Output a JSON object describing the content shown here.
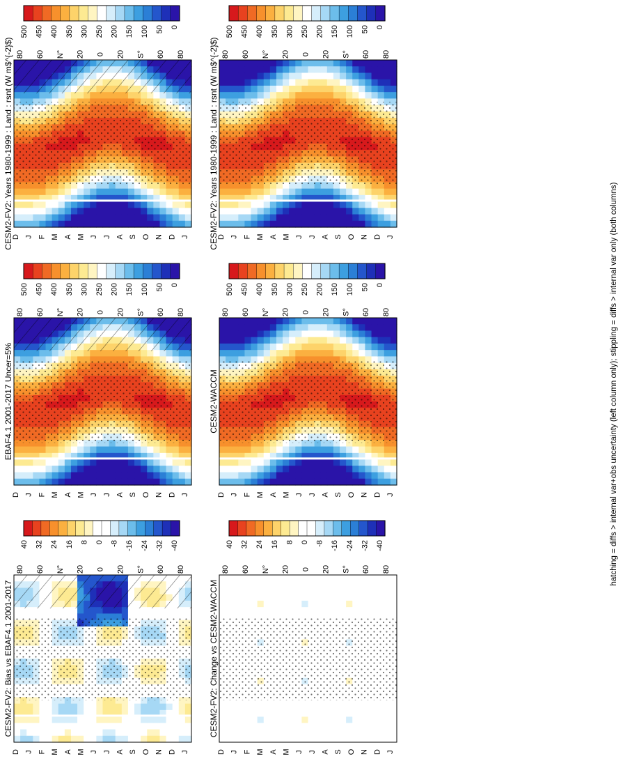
{
  "figure": {
    "footnote": "hatching = diffs > internal var+obs uncertainty (left column only); stippling = diffs > internal var only (both columns)"
  },
  "colors": {
    "abs_scale": [
      "#d7191c",
      "#e8421f",
      "#f06a24",
      "#f7902c",
      "#fbb040",
      "#fdd36a",
      "#fdea92",
      "#fff5c2",
      "#ffffff",
      "#d6eefb",
      "#a6d8f5",
      "#6cbdeb",
      "#3d9fe0",
      "#2b7fd6",
      "#2456cc",
      "#1e30b8",
      "#2a14a8"
    ],
    "diff_scale": [
      "#d7191c",
      "#e8421f",
      "#f06a24",
      "#f7902c",
      "#fbb040",
      "#fdd36a",
      "#fdea92",
      "#fff5c2",
      "#ffffff",
      "#ffffff",
      "#d6eefb",
      "#a6d8f5",
      "#6cbdeb",
      "#3d9fe0",
      "#2b7fd6",
      "#2456cc",
      "#1e30b8",
      "#2a14a8"
    ]
  },
  "chart_data": [
    {
      "id": "left-top",
      "type": "heatmap",
      "title": "CESM2-FV2: Years 1980-1999 : Land : rsnt (W m$^{-2}$)",
      "x_ticks": [
        "D",
        "J",
        "F",
        "M",
        "A",
        "M",
        "J",
        "J",
        "A",
        "S",
        "O",
        "N",
        "D",
        "J"
      ],
      "y_ticks": [
        "80",
        "60",
        "N°",
        "20",
        "0",
        "20",
        "S°",
        "60",
        "80"
      ],
      "colorbar": {
        "labels": [
          "500",
          "450",
          "400",
          "350",
          "300",
          "250",
          "200",
          "150",
          "100",
          "50",
          "0"
        ],
        "palette": "abs"
      },
      "field": "abs",
      "seasonal_amplitude": 1.0,
      "hatching": true,
      "stippling": true
    },
    {
      "id": "left-mid",
      "type": "heatmap",
      "title": "EBAF4.1 2001-2017 Uncer=5%",
      "x_ticks": [
        "D",
        "J",
        "F",
        "M",
        "A",
        "M",
        "J",
        "J",
        "A",
        "S",
        "O",
        "N",
        "D",
        "J"
      ],
      "y_ticks": [
        "80",
        "60",
        "N°",
        "20",
        "0",
        "20",
        "S°",
        "60",
        "80"
      ],
      "colorbar": {
        "labels": [
          "500",
          "450",
          "400",
          "350",
          "300",
          "250",
          "200",
          "150",
          "100",
          "50",
          "0"
        ],
        "palette": "abs"
      },
      "field": "abs",
      "seasonal_amplitude": 1.0,
      "hatching": true,
      "stippling": true
    },
    {
      "id": "left-bot",
      "type": "heatmap",
      "title": "CESM2-FV2: Bias vs EBAF4.1 2001-2017",
      "x_ticks": [
        "D",
        "J",
        "F",
        "M",
        "A",
        "M",
        "J",
        "J",
        "A",
        "S",
        "O",
        "N",
        "D",
        "J"
      ],
      "y_ticks": [
        "80",
        "60",
        "N°",
        "20",
        "0",
        "20",
        "S°",
        "60",
        "80"
      ],
      "colorbar": {
        "labels": [
          "40",
          "32",
          "24",
          "16",
          "8",
          "0",
          "-8",
          "-16",
          "-24",
          "-32",
          "-40"
        ],
        "palette": "diff"
      },
      "field": "bias",
      "seasonal_amplitude": 0.6,
      "hatching": true,
      "stippling": true
    },
    {
      "id": "right-top",
      "type": "heatmap",
      "title": "CESM2-FV2: Years 1980-1999 : Land : rsnt (W m$^{-2}$)",
      "x_ticks": [
        "D",
        "J",
        "F",
        "M",
        "A",
        "M",
        "J",
        "J",
        "A",
        "S",
        "O",
        "N",
        "D",
        "J"
      ],
      "y_ticks": [
        "80",
        "60",
        "N°",
        "20",
        "0",
        "20",
        "S°",
        "60",
        "80"
      ],
      "colorbar": {
        "labels": [
          "500",
          "450",
          "400",
          "350",
          "300",
          "250",
          "200",
          "150",
          "100",
          "50",
          "0"
        ],
        "palette": "abs"
      },
      "field": "abs",
      "seasonal_amplitude": 1.0,
      "hatching": false,
      "stippling": true
    },
    {
      "id": "right-mid",
      "type": "heatmap",
      "title": "CESM2-WACCM",
      "x_ticks": [
        "D",
        "J",
        "F",
        "M",
        "A",
        "M",
        "J",
        "J",
        "A",
        "S",
        "O",
        "N",
        "D",
        "J"
      ],
      "y_ticks": [
        "80",
        "60",
        "N°",
        "20",
        "0",
        "20",
        "S°",
        "60",
        "80"
      ],
      "colorbar": {
        "labels": [
          "500",
          "450",
          "400",
          "350",
          "300",
          "250",
          "200",
          "150",
          "100",
          "50",
          "0"
        ],
        "palette": "abs"
      },
      "field": "abs",
      "seasonal_amplitude": 1.0,
      "hatching": false,
      "stippling": true
    },
    {
      "id": "right-bot",
      "type": "heatmap",
      "title": "CESM2-FV2: Change vs CESM2-WACCM",
      "x_ticks": [
        "D",
        "J",
        "F",
        "M",
        "A",
        "M",
        "J",
        "J",
        "A",
        "S",
        "O",
        "N",
        "D",
        "J"
      ],
      "y_ticks": [
        "80",
        "60",
        "N°",
        "20",
        "0",
        "20",
        "S°",
        "60",
        "80"
      ],
      "colorbar": {
        "labels": [
          "40",
          "32",
          "24",
          "16",
          "8",
          "0",
          "-8",
          "-16",
          "-24",
          "-32",
          "-40"
        ],
        "palette": "diff"
      },
      "field": "change",
      "seasonal_amplitude": 0.4,
      "hatching": false,
      "stippling": true
    }
  ]
}
